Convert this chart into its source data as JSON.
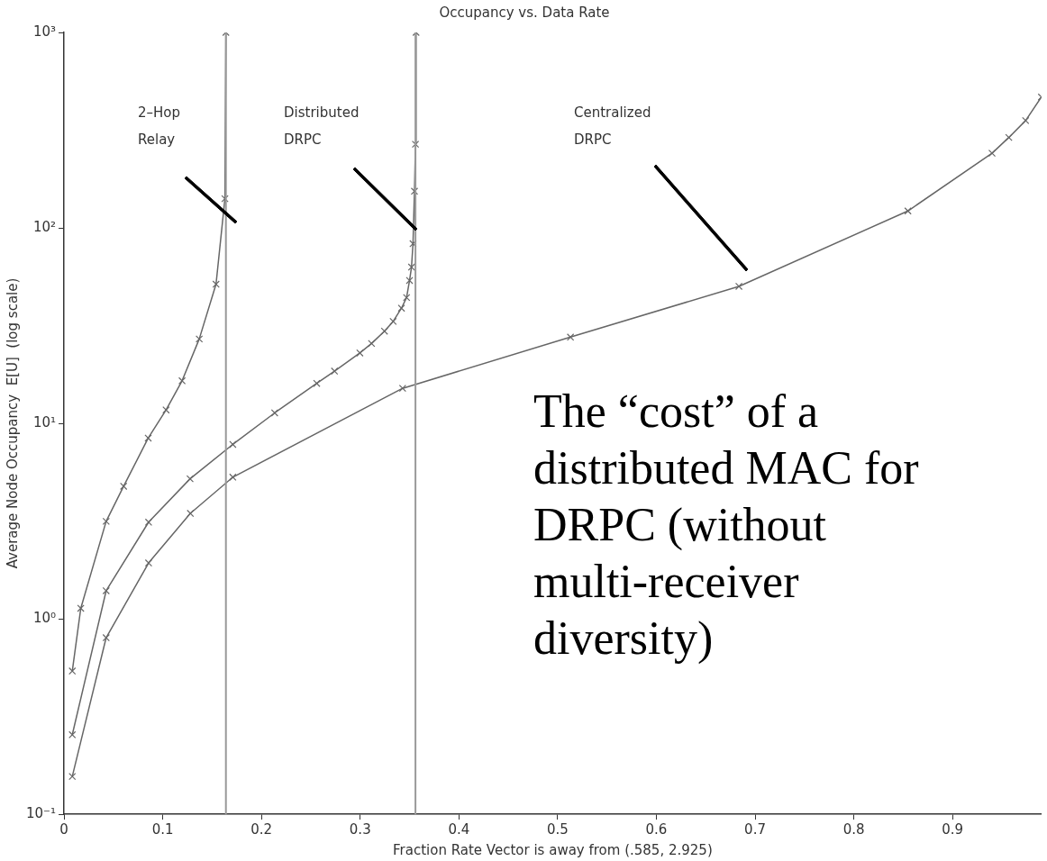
{
  "chart_data": {
    "type": "line",
    "title": "Occupancy vs. Data Rate",
    "xlabel": "Fraction Rate Vector is away from (.585, 2.925)",
    "ylabel": "Average Node Occupancy  E[U]  (log scale)",
    "log": "y",
    "grid": false,
    "legend": false,
    "marker": "cross",
    "line_style": "solid",
    "xlim": [
      0,
      0.99
    ],
    "xticks": [
      0,
      0.1,
      0.2,
      0.3,
      0.4,
      0.5,
      0.6,
      0.7,
      0.8,
      0.9
    ],
    "ylim": [
      0.1,
      1000
    ],
    "yticks": [
      {
        "value": 0.1,
        "label": "10⁻¹"
      },
      {
        "value": 1,
        "label": "10⁰"
      },
      {
        "value": 10,
        "label": "10¹"
      },
      {
        "value": 100,
        "label": "10²"
      },
      {
        "value": 1000,
        "label": "10³"
      }
    ],
    "series": [
      {
        "color": "#666666",
        "x": [
          0.0084,
          0.017,
          0.0427,
          0.0604,
          0.0853,
          0.1034,
          0.1196,
          0.137,
          0.154,
          0.163,
          0.164
        ],
        "values": [
          0.54,
          1.13,
          3.15,
          4.76,
          8.4,
          11.7,
          16.5,
          27,
          51.5,
          141,
          1000
        ]
      },
      {
        "color": "#666666",
        "x": [
          0.0084,
          0.0427,
          0.0857,
          0.1277,
          0.171,
          0.2134,
          0.256,
          0.274,
          0.2997,
          0.3115,
          0.3246,
          0.3334,
          0.3418,
          0.347,
          0.35,
          0.352,
          0.3535,
          0.355,
          0.356,
          0.3566
        ],
        "values": [
          0.255,
          1.39,
          3.12,
          5.2,
          7.8,
          11.3,
          16,
          18.5,
          22.9,
          25.6,
          29.6,
          33.2,
          38.8,
          44,
          53.8,
          63,
          83,
          154,
          268,
          1000
        ]
      },
      {
        "color": "#666666",
        "x": [
          0.0084,
          0.0427,
          0.0857,
          0.128,
          0.171,
          0.343,
          0.513,
          0.6836,
          0.8548,
          0.94,
          0.957,
          0.974,
          0.99
        ],
        "values": [
          0.156,
          0.8,
          1.93,
          3.46,
          5.3,
          15.1,
          27.6,
          50.2,
          122,
          241,
          290,
          354,
          467
        ]
      }
    ],
    "ref_lines": [
      {
        "axis": "x",
        "value": 0.164,
        "color": "#999999"
      },
      {
        "axis": "x",
        "value": 0.356,
        "color": "#999999"
      }
    ],
    "annotations": [
      "2–Hop Relay",
      "Distributed DRPC",
      "Centralized DRPC",
      "The “cost” of a distributed MAC for DRPC (without multi-receiver diversity)"
    ]
  }
}
